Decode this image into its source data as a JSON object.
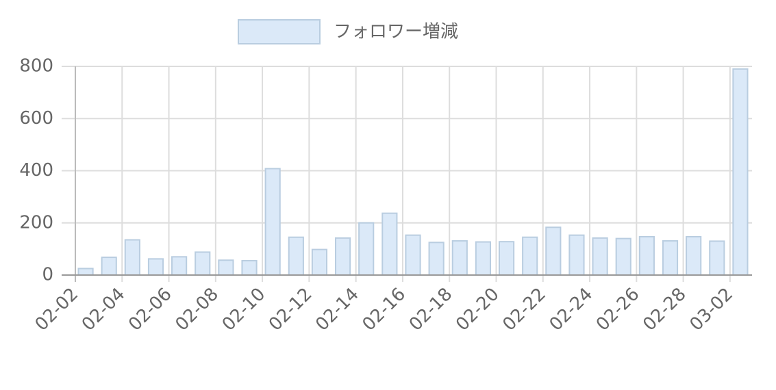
{
  "chart_data": {
    "type": "bar",
    "categories": [
      "02-02",
      null,
      "02-04",
      null,
      "02-06",
      null,
      "02-08",
      null,
      "02-10",
      null,
      "02-12",
      null,
      "02-14",
      null,
      "02-16",
      null,
      "02-18",
      null,
      "02-20",
      null,
      "02-22",
      null,
      "02-24",
      null,
      "02-26",
      null,
      "02-28",
      null,
      "03-02"
    ],
    "series": [
      {
        "name": "フォロワー増減",
        "color": "#dbe9f8",
        "values": [
          25,
          68,
          135,
          62,
          70,
          88,
          57,
          55,
          408,
          145,
          98,
          142,
          200,
          237,
          153,
          125,
          131,
          127,
          128,
          145,
          183,
          153,
          142,
          140,
          147,
          131,
          147,
          130,
          790
        ]
      }
    ],
    "ylim": [
      0,
      800
    ],
    "yticks": [
      0,
      200,
      400,
      600,
      800
    ],
    "grid": true,
    "legend": "top"
  }
}
